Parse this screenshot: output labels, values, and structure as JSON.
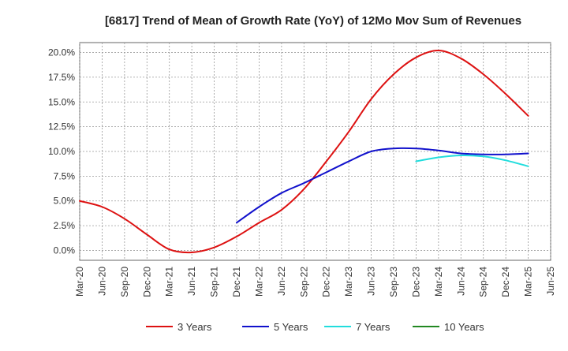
{
  "chart_data": {
    "type": "line",
    "title": "[6817]  Trend of Mean of Growth Rate (YoY) of 12Mo Mov Sum of Revenues",
    "xlabel": "",
    "ylabel": "",
    "categories": [
      "Mar-20",
      "Jun-20",
      "Sep-20",
      "Dec-20",
      "Mar-21",
      "Jun-21",
      "Sep-21",
      "Dec-21",
      "Mar-22",
      "Jun-22",
      "Sep-22",
      "Dec-22",
      "Mar-23",
      "Jun-23",
      "Sep-23",
      "Dec-23",
      "Mar-24",
      "Jun-24",
      "Sep-24",
      "Dec-24",
      "Mar-25",
      "Jun-25"
    ],
    "y_ticks": [
      0,
      2.5,
      5,
      7.5,
      10,
      12.5,
      15,
      17.5,
      20
    ],
    "y_tick_labels": [
      "0.0%",
      "2.5%",
      "5.0%",
      "7.5%",
      "10.0%",
      "12.5%",
      "15.0%",
      "17.5%",
      "20.0%"
    ],
    "ylim": [
      -1.0,
      21.0
    ],
    "grid": true,
    "legend_position": "bottom",
    "series": [
      {
        "name": "3 Years",
        "color": "#dd1111",
        "values": [
          5.0,
          4.4,
          3.2,
          1.6,
          0.1,
          -0.2,
          0.3,
          1.4,
          2.8,
          4.1,
          6.2,
          9.0,
          12.0,
          15.3,
          17.8,
          19.5,
          20.2,
          19.4,
          17.8,
          15.8,
          13.6,
          null
        ]
      },
      {
        "name": "5 Years",
        "color": "#1111cc",
        "values": [
          null,
          null,
          null,
          null,
          null,
          null,
          null,
          2.8,
          4.4,
          5.8,
          6.8,
          7.9,
          9.0,
          10.0,
          10.3,
          10.3,
          10.1,
          9.8,
          9.7,
          9.7,
          9.8,
          null
        ]
      },
      {
        "name": "7 Years",
        "color": "#22dddd",
        "values": [
          null,
          null,
          null,
          null,
          null,
          null,
          null,
          null,
          null,
          null,
          null,
          null,
          null,
          null,
          null,
          9.0,
          9.4,
          9.6,
          9.5,
          9.1,
          8.5,
          null
        ]
      },
      {
        "name": "10 Years",
        "color": "#228822",
        "values": [
          null,
          null,
          null,
          null,
          null,
          null,
          null,
          null,
          null,
          null,
          null,
          null,
          null,
          null,
          null,
          null,
          null,
          null,
          null,
          null,
          null,
          null
        ]
      }
    ]
  }
}
